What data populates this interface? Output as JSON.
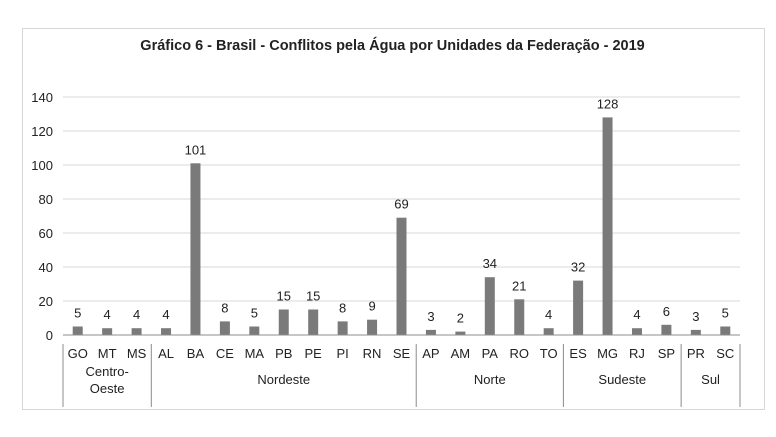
{
  "chart_data": {
    "type": "bar",
    "title": "Gráfico 6 - Brasil - Conflitos pela Água por Unidades da Federação - 2019",
    "xlabel": "",
    "ylabel": "",
    "ylim": [
      0,
      140
    ],
    "yticks": [
      0,
      20,
      40,
      60,
      80,
      100,
      120,
      140
    ],
    "grid": true,
    "legend": "none",
    "colors": {
      "bar": "#7a7a7a",
      "grid": "#d9d9d9",
      "axis": "#8c8c8c"
    },
    "groups": [
      {
        "name": "Centro-\nOeste",
        "categories": [
          "GO",
          "MT",
          "MS"
        ]
      },
      {
        "name": "Nordeste",
        "categories": [
          "AL",
          "BA",
          "CE",
          "MA",
          "PB",
          "PE",
          "PI",
          "RN",
          "SE"
        ]
      },
      {
        "name": "Norte",
        "categories": [
          "AP",
          "AM",
          "PA",
          "RO",
          "TO"
        ]
      },
      {
        "name": "Sudeste",
        "categories": [
          "ES",
          "MG",
          "RJ",
          "SP"
        ]
      },
      {
        "name": "Sul",
        "categories": [
          "PR",
          "SC"
        ]
      }
    ],
    "categories": [
      "GO",
      "MT",
      "MS",
      "AL",
      "BA",
      "CE",
      "MA",
      "PB",
      "PE",
      "PI",
      "RN",
      "SE",
      "AP",
      "AM",
      "PA",
      "RO",
      "TO",
      "ES",
      "MG",
      "RJ",
      "SP",
      "PR",
      "SC"
    ],
    "values": [
      5,
      4,
      4,
      4,
      101,
      8,
      5,
      15,
      15,
      8,
      9,
      69,
      3,
      2,
      34,
      21,
      4,
      32,
      128,
      4,
      6,
      3,
      5
    ]
  }
}
